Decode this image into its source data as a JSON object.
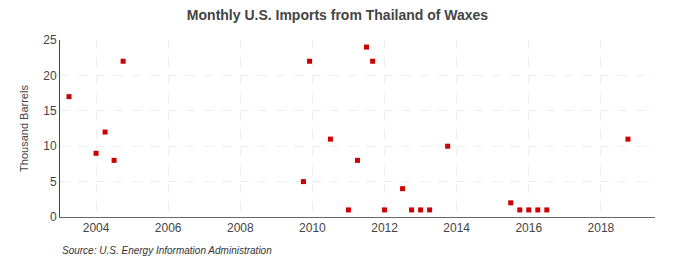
{
  "chart_data": {
    "type": "scatter",
    "title": "Monthly U.S. Imports from Thailand of Waxes",
    "ylabel": "Thousand Barrels",
    "annotations": [
      "Source: U.S. Energy Information Administration"
    ],
    "x": [
      2003.25,
      2004.0,
      2004.25,
      2004.5,
      2004.75,
      2009.75,
      2009.92,
      2010.5,
      2011.0,
      2011.25,
      2011.5,
      2011.67,
      2012.0,
      2012.5,
      2012.75,
      2013.0,
      2013.25,
      2013.75,
      2015.5,
      2015.75,
      2016.0,
      2016.25,
      2016.5,
      2018.75
    ],
    "values": [
      17,
      9,
      12,
      8,
      22,
      5,
      22,
      11,
      1,
      8,
      24,
      22,
      1,
      4,
      1,
      1,
      1,
      10,
      2,
      1,
      1,
      1,
      1,
      11
    ],
    "color": "#cc0000",
    "marker": "square",
    "xlim": [
      2003.0,
      2019.5
    ],
    "ylim": [
      0,
      25
    ],
    "xticks": [
      2004,
      2006,
      2008,
      2010,
      2012,
      2014,
      2016,
      2018
    ],
    "yticks": [
      0,
      5,
      10,
      15,
      20,
      25
    ],
    "grid": true
  }
}
